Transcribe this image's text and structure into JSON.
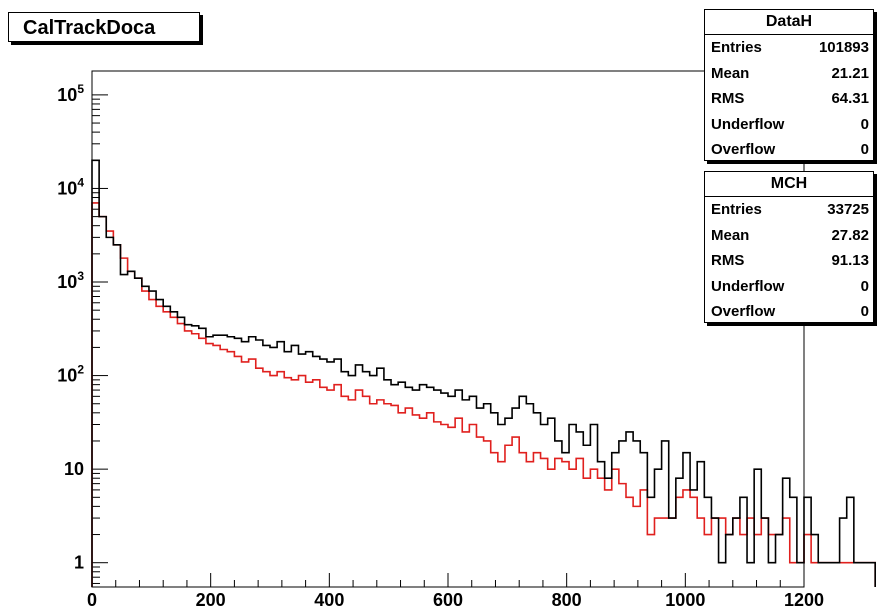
{
  "title": "CalTrackDoca",
  "stats": [
    {
      "name": "DataH",
      "rows": [
        {
          "label": "Entries",
          "value": "101893"
        },
        {
          "label": "Mean",
          "value": "21.21"
        },
        {
          "label": "RMS",
          "value": "64.31"
        },
        {
          "label": "Underflow",
          "value": "0"
        },
        {
          "label": "Overflow",
          "value": "0"
        }
      ]
    },
    {
      "name": "MCH",
      "rows": [
        {
          "label": "Entries",
          "value": "33725"
        },
        {
          "label": "Mean",
          "value": "27.82"
        },
        {
          "label": "RMS",
          "value": "91.13"
        },
        {
          "label": "Underflow",
          "value": "0"
        },
        {
          "label": "Overflow",
          "value": "0"
        }
      ]
    }
  ],
  "chart_data": {
    "type": "line",
    "title": "CalTrackDoca",
    "xlabel": "",
    "ylabel": "",
    "xlim": [
      0,
      1200
    ],
    "ylim": [
      0.55,
      180000
    ],
    "yscale": "log",
    "grid": false,
    "x_ticks": [
      "0",
      "200",
      "400",
      "600",
      "800",
      "1000",
      "1200"
    ],
    "y_ticks": [
      {
        "value": 1,
        "base": "1",
        "exp": ""
      },
      {
        "value": 10,
        "base": "10",
        "exp": ""
      },
      {
        "value": 100,
        "base": "10",
        "exp": "2"
      },
      {
        "value": 1000,
        "base": "10",
        "exp": "3"
      },
      {
        "value": 10000,
        "base": "10",
        "exp": "4"
      },
      {
        "value": 100000,
        "base": "10",
        "exp": "5"
      }
    ],
    "bin_width": 12,
    "series": [
      {
        "name": "DataH",
        "color": "#000000",
        "values": [
          20000,
          5000,
          3000,
          2500,
          1200,
          1300,
          1100,
          900,
          800,
          650,
          550,
          480,
          420,
          350,
          340,
          320,
          260,
          270,
          270,
          260,
          250,
          230,
          260,
          240,
          210,
          200,
          230,
          180,
          210,
          170,
          180,
          160,
          150,
          140,
          150,
          110,
          100,
          130,
          110,
          100,
          120,
          90,
          80,
          85,
          75,
          70,
          80,
          75,
          70,
          65,
          60,
          70,
          55,
          60,
          45,
          50,
          40,
          30,
          35,
          45,
          60,
          50,
          40,
          30,
          35,
          20,
          15,
          30,
          25,
          18,
          30,
          12,
          8,
          15,
          20,
          25,
          20,
          15,
          5,
          10,
          20,
          3,
          8,
          15,
          6,
          12,
          5,
          3,
          1,
          2,
          3,
          5,
          1,
          10,
          3,
          1,
          2,
          8,
          5,
          1,
          5,
          2,
          1,
          1,
          1,
          3,
          5,
          1,
          1,
          1
        ]
      },
      {
        "name": "MCH",
        "color": "#e0201e",
        "values": [
          7000,
          5000,
          3500,
          2500,
          1800,
          1300,
          1100,
          800,
          650,
          550,
          480,
          420,
          360,
          300,
          280,
          250,
          220,
          210,
          190,
          180,
          160,
          140,
          150,
          120,
          110,
          100,
          110,
          95,
          90,
          100,
          85,
          90,
          75,
          70,
          80,
          60,
          55,
          70,
          60,
          50,
          55,
          50,
          48,
          40,
          45,
          38,
          35,
          40,
          32,
          30,
          28,
          35,
          25,
          30,
          22,
          20,
          15,
          12,
          18,
          22,
          15,
          12,
          15,
          13,
          10,
          13,
          12,
          10,
          13,
          8,
          10,
          8,
          6,
          10,
          7,
          5,
          4,
          6,
          2,
          3,
          3,
          3,
          5,
          6,
          5,
          3,
          2,
          3,
          3,
          2,
          3,
          2,
          3,
          2,
          3,
          2,
          2,
          3,
          1,
          1,
          2,
          1,
          1,
          1,
          1,
          1,
          1,
          1,
          1,
          1
        ]
      }
    ]
  }
}
